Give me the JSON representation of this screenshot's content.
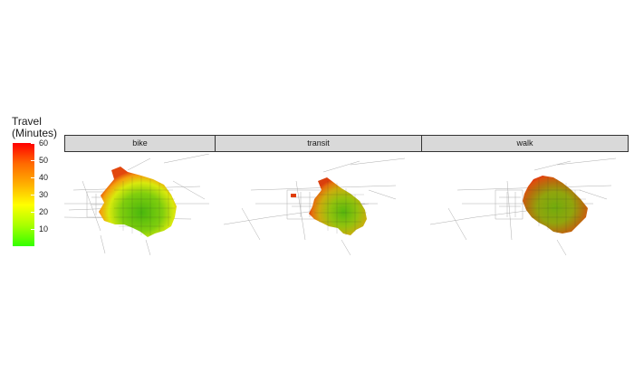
{
  "legend": {
    "title": "Travel\n(Minutes)",
    "ticks": [
      60,
      50,
      40,
      30,
      20,
      10
    ],
    "range": [
      0,
      60
    ],
    "colors": [
      "#33ff00",
      "#ffff00",
      "#ff0000"
    ]
  },
  "facets": [
    {
      "label": "bike"
    },
    {
      "label": "transit"
    },
    {
      "label": "walk"
    }
  ]
}
